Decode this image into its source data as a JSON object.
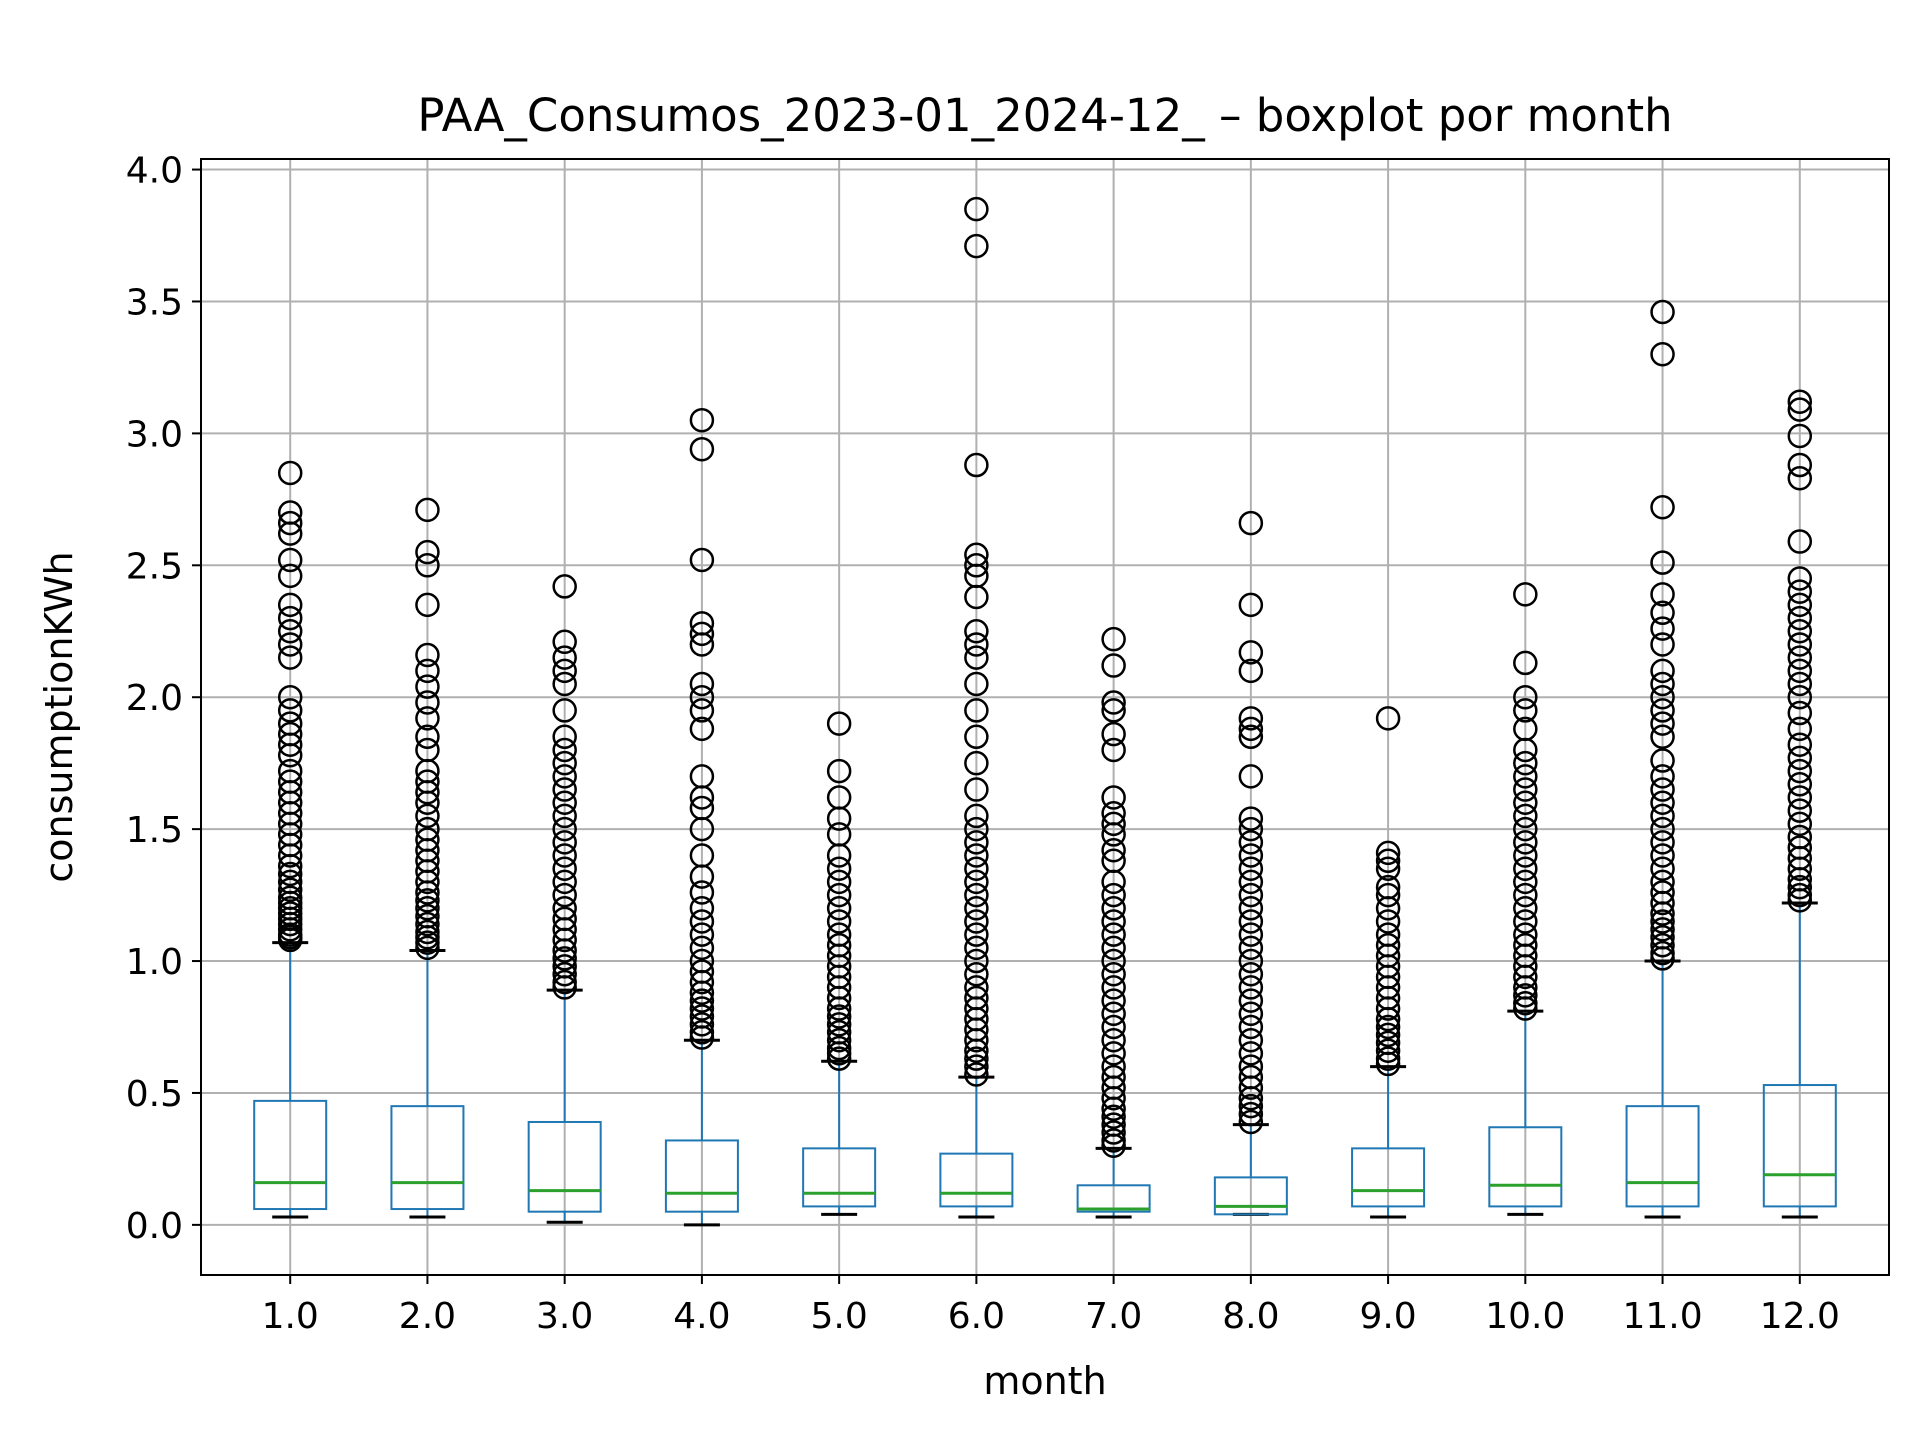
{
  "chart_data": {
    "type": "boxplot",
    "title": "PAA_Consumos_2023-01_2024-12_ – boxplot por month",
    "xlabel": "month",
    "ylabel": "consumptionKWh",
    "ylim": [
      -0.19,
      4.04
    ],
    "yticks": [
      0.0,
      0.5,
      1.0,
      1.5,
      2.0,
      2.5,
      3.0,
      3.5,
      4.0
    ],
    "ytick_labels": [
      "0.0",
      "0.5",
      "1.0",
      "1.5",
      "2.0",
      "2.5",
      "3.0",
      "3.5",
      "4.0"
    ],
    "grid": true,
    "legend": "none",
    "categories": [
      "1.0",
      "2.0",
      "3.0",
      "4.0",
      "5.0",
      "6.0",
      "7.0",
      "8.0",
      "9.0",
      "10.0",
      "11.0",
      "12.0"
    ],
    "boxes": [
      {
        "whisker_low": 0.03,
        "q1": 0.06,
        "median": 0.16,
        "q3": 0.47,
        "whisker_high": 1.07,
        "outliers": [
          1.08,
          1.09,
          1.1,
          1.12,
          1.14,
          1.16,
          1.18,
          1.2,
          1.22,
          1.24,
          1.27,
          1.3,
          1.33,
          1.36,
          1.4,
          1.44,
          1.48,
          1.52,
          1.56,
          1.6,
          1.64,
          1.68,
          1.72,
          1.78,
          1.82,
          1.86,
          1.9,
          1.95,
          2.0,
          2.15,
          2.2,
          2.25,
          2.3,
          2.35,
          2.46,
          2.52,
          2.62,
          2.66,
          2.7,
          2.85
        ]
      },
      {
        "whisker_low": 0.03,
        "q1": 0.06,
        "median": 0.16,
        "q3": 0.45,
        "whisker_high": 1.04,
        "outliers": [
          1.05,
          1.07,
          1.09,
          1.11,
          1.14,
          1.17,
          1.2,
          1.23,
          1.26,
          1.3,
          1.34,
          1.38,
          1.42,
          1.46,
          1.5,
          1.55,
          1.6,
          1.64,
          1.68,
          1.72,
          1.8,
          1.85,
          1.92,
          1.98,
          2.04,
          2.1,
          2.16,
          2.35,
          2.5,
          2.55,
          2.71
        ]
      },
      {
        "whisker_low": 0.01,
        "q1": 0.05,
        "median": 0.13,
        "q3": 0.39,
        "whisker_high": 0.89,
        "outliers": [
          0.9,
          0.92,
          0.95,
          0.98,
          1.01,
          1.04,
          1.08,
          1.12,
          1.16,
          1.2,
          1.25,
          1.3,
          1.35,
          1.4,
          1.45,
          1.5,
          1.55,
          1.6,
          1.65,
          1.7,
          1.75,
          1.8,
          1.85,
          1.95,
          2.05,
          2.1,
          2.15,
          2.21,
          2.42
        ]
      },
      {
        "whisker_low": 0.0,
        "q1": 0.05,
        "median": 0.12,
        "q3": 0.32,
        "whisker_high": 0.7,
        "outliers": [
          0.71,
          0.73,
          0.76,
          0.79,
          0.82,
          0.85,
          0.88,
          0.92,
          0.96,
          1.0,
          1.05,
          1.1,
          1.15,
          1.2,
          1.26,
          1.32,
          1.4,
          1.5,
          1.58,
          1.62,
          1.7,
          1.88,
          1.95,
          2.0,
          2.05,
          2.2,
          2.24,
          2.28,
          2.52,
          2.94,
          3.05
        ]
      },
      {
        "whisker_low": 0.04,
        "q1": 0.07,
        "median": 0.12,
        "q3": 0.29,
        "whisker_high": 0.62,
        "outliers": [
          0.63,
          0.65,
          0.67,
          0.7,
          0.73,
          0.76,
          0.79,
          0.82,
          0.86,
          0.9,
          0.94,
          0.98,
          1.02,
          1.06,
          1.1,
          1.15,
          1.2,
          1.25,
          1.3,
          1.35,
          1.4,
          1.48,
          1.54,
          1.62,
          1.72,
          1.9
        ]
      },
      {
        "whisker_low": 0.03,
        "q1": 0.07,
        "median": 0.12,
        "q3": 0.27,
        "whisker_high": 0.56,
        "outliers": [
          0.57,
          0.6,
          0.63,
          0.66,
          0.7,
          0.74,
          0.78,
          0.82,
          0.86,
          0.9,
          0.95,
          1.0,
          1.05,
          1.1,
          1.15,
          1.2,
          1.25,
          1.3,
          1.35,
          1.4,
          1.45,
          1.5,
          1.55,
          1.65,
          1.75,
          1.85,
          1.95,
          2.05,
          2.15,
          2.2,
          2.25,
          2.38,
          2.46,
          2.5,
          2.54,
          2.88,
          3.71,
          3.85
        ]
      },
      {
        "whisker_low": 0.03,
        "q1": 0.05,
        "median": 0.06,
        "q3": 0.15,
        "whisker_high": 0.29,
        "outliers": [
          0.3,
          0.32,
          0.35,
          0.38,
          0.41,
          0.44,
          0.48,
          0.52,
          0.56,
          0.6,
          0.65,
          0.7,
          0.75,
          0.8,
          0.85,
          0.9,
          0.95,
          1.0,
          1.05,
          1.1,
          1.15,
          1.2,
          1.25,
          1.3,
          1.38,
          1.42,
          1.48,
          1.52,
          1.56,
          1.62,
          1.8,
          1.86,
          1.95,
          1.98,
          2.12,
          2.22
        ]
      },
      {
        "whisker_low": 0.04,
        "q1": 0.04,
        "median": 0.07,
        "q3": 0.18,
        "whisker_high": 0.38,
        "outliers": [
          0.39,
          0.42,
          0.45,
          0.48,
          0.52,
          0.56,
          0.6,
          0.65,
          0.7,
          0.75,
          0.8,
          0.85,
          0.9,
          0.95,
          1.0,
          1.05,
          1.1,
          1.15,
          1.2,
          1.25,
          1.3,
          1.35,
          1.4,
          1.45,
          1.5,
          1.54,
          1.7,
          1.85,
          1.88,
          1.92,
          2.1,
          2.17,
          2.35,
          2.66
        ]
      },
      {
        "whisker_low": 0.03,
        "q1": 0.07,
        "median": 0.13,
        "q3": 0.29,
        "whisker_high": 0.6,
        "outliers": [
          0.61,
          0.63,
          0.66,
          0.69,
          0.72,
          0.75,
          0.78,
          0.82,
          0.86,
          0.9,
          0.94,
          0.98,
          1.02,
          1.06,
          1.1,
          1.15,
          1.2,
          1.25,
          1.28,
          1.35,
          1.38,
          1.41,
          1.92
        ]
      },
      {
        "whisker_low": 0.04,
        "q1": 0.07,
        "median": 0.15,
        "q3": 0.37,
        "whisker_high": 0.81,
        "outliers": [
          0.82,
          0.84,
          0.87,
          0.9,
          0.94,
          0.98,
          1.02,
          1.06,
          1.1,
          1.15,
          1.2,
          1.25,
          1.3,
          1.35,
          1.4,
          1.45,
          1.5,
          1.55,
          1.6,
          1.65,
          1.7,
          1.75,
          1.8,
          1.88,
          1.95,
          2.0,
          2.13,
          2.39
        ]
      },
      {
        "whisker_low": 0.03,
        "q1": 0.07,
        "median": 0.16,
        "q3": 0.45,
        "whisker_high": 1.0,
        "outliers": [
          1.01,
          1.03,
          1.06,
          1.09,
          1.12,
          1.15,
          1.18,
          1.22,
          1.26,
          1.3,
          1.35,
          1.4,
          1.45,
          1.5,
          1.55,
          1.6,
          1.65,
          1.7,
          1.76,
          1.85,
          1.9,
          1.95,
          2.0,
          2.05,
          2.1,
          2.2,
          2.26,
          2.32,
          2.39,
          2.51,
          2.72,
          3.3,
          3.46
        ]
      },
      {
        "whisker_low": 0.03,
        "q1": 0.07,
        "median": 0.19,
        "q3": 0.53,
        "whisker_high": 1.22,
        "outliers": [
          1.23,
          1.25,
          1.28,
          1.31,
          1.35,
          1.39,
          1.43,
          1.47,
          1.52,
          1.57,
          1.62,
          1.67,
          1.72,
          1.77,
          1.82,
          1.88,
          1.94,
          2.0,
          2.05,
          2.1,
          2.15,
          2.2,
          2.25,
          2.3,
          2.35,
          2.4,
          2.45,
          2.59,
          2.83,
          2.88,
          2.99,
          3.09,
          3.12
        ]
      }
    ],
    "colors": {
      "box": "#1f77b4",
      "median": "#2ca02c",
      "whisker": "#1f77b4",
      "cap": "#000000",
      "flier": "#000000",
      "grid": "#b0b0b0"
    }
  }
}
